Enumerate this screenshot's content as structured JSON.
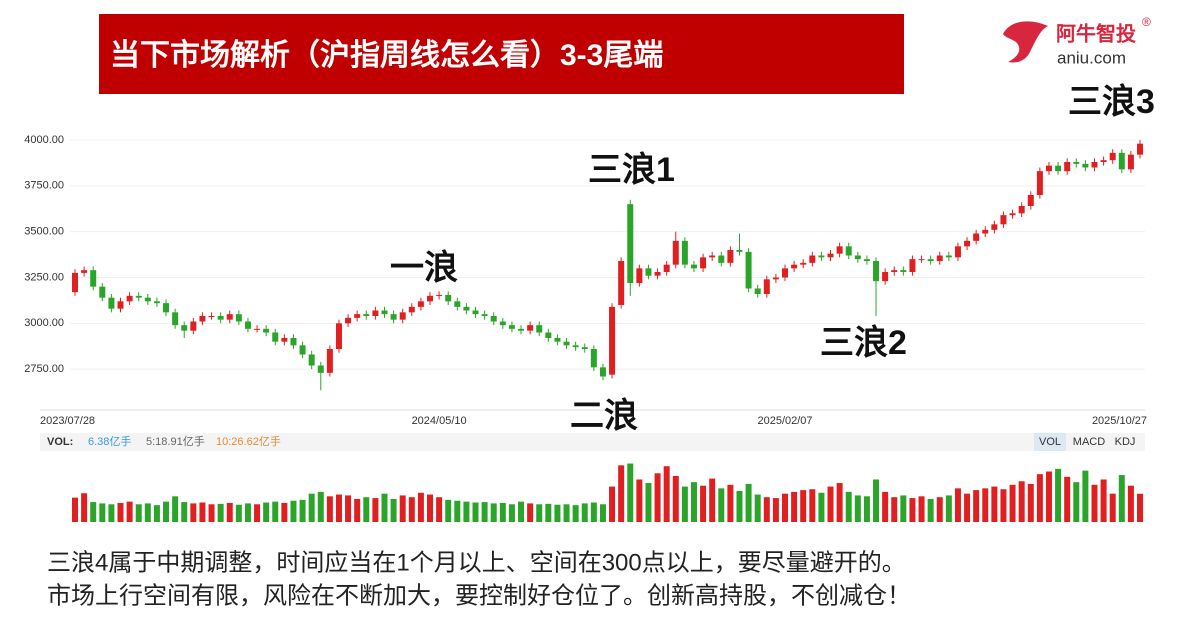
{
  "slide": {
    "title": "当下市场解析（沪指周线怎么看）3-3尾端",
    "logo_name": "阿牛智投",
    "logo_mark": "®",
    "logo_url": "aniu.com",
    "text": [
      "三浪4属于中期调整，时间应当在1个月以上、空间在300点以上，要尽量避开的。",
      "市场上行空间有限，风险在不断加大，要控制好仓位了。创新高持股，不创减仓！"
    ]
  },
  "chart_data": [
    {
      "type": "candlestick",
      "annotations": [
        "三浪3",
        "三浪1",
        "一浪",
        "三浪2",
        "二浪"
      ],
      "up_color": "#e02020",
      "down_color": "#2aa52a",
      "ylim": [
        2560,
        4060
      ],
      "yticks": [
        {
          "value": 2750,
          "label": "2750.00"
        },
        {
          "value": 3000,
          "label": "3000.00"
        },
        {
          "value": 3250,
          "label": "3250.00"
        },
        {
          "value": 3500,
          "label": "3500.00"
        },
        {
          "value": 3750,
          "label": "3750.00"
        },
        {
          "value": 4000,
          "label": "4000.00"
        }
      ],
      "grid": true,
      "categories": [
        "2023/07/28",
        null,
        null,
        null,
        null,
        null,
        null,
        null,
        null,
        null,
        null,
        null,
        null,
        null,
        null,
        null,
        null,
        null,
        null,
        null,
        null,
        null,
        null,
        null,
        null,
        null,
        null,
        null,
        null,
        null,
        null,
        null,
        null,
        null,
        null,
        null,
        null,
        null,
        null,
        null,
        "2024/05/10",
        null,
        null,
        null,
        null,
        null,
        null,
        null,
        null,
        null,
        null,
        null,
        null,
        null,
        null,
        null,
        null,
        null,
        null,
        null,
        null,
        null,
        null,
        null,
        null,
        null,
        null,
        null,
        null,
        null,
        null,
        null,
        null,
        null,
        null,
        null,
        null,
        null,
        "2025/02/07",
        null,
        null,
        null,
        null,
        null,
        null,
        null,
        null,
        null,
        null,
        null,
        null,
        null,
        null,
        null,
        null,
        null,
        null,
        null,
        null,
        null,
        null,
        null,
        null,
        null,
        null,
        null,
        null,
        null,
        null,
        null,
        null,
        null,
        null,
        null,
        null,
        null,
        null,
        "2025/10/27"
      ],
      "open": [
        3170,
        3275,
        3290,
        3200,
        3140,
        3080,
        3120,
        3150,
        3140,
        3120,
        3110,
        3060,
        2990,
        2960,
        3010,
        3040,
        3040,
        3020,
        3050,
        3010,
        2970,
        2970,
        2950,
        2900,
        2920,
        2880,
        2830,
        2770,
        2730,
        2860,
        3000,
        3030,
        3050,
        3040,
        3070,
        3050,
        3020,
        3060,
        3090,
        3120,
        3150,
        3155,
        3120,
        3090,
        3070,
        3050,
        3040,
        3010,
        2990,
        2970,
        2960,
        2990,
        2950,
        2920,
        2900,
        2880,
        2870,
        2860,
        2760,
        2720,
        3100,
        3650,
        3220,
        3300,
        3260,
        3280,
        3320,
        3450,
        3320,
        3300,
        3360,
        3370,
        3330,
        3400,
        3390,
        3190,
        3160,
        3240,
        3250,
        3300,
        3320,
        3330,
        3370,
        3360,
        3380,
        3420,
        3370,
        3350,
        3340,
        3230,
        3280,
        3290,
        3280,
        3350,
        3350,
        3340,
        3370,
        3360,
        3420,
        3450,
        3490,
        3510,
        3540,
        3590,
        3600,
        3640,
        3700,
        3830,
        3860,
        3830,
        3880,
        3870,
        3850,
        3880,
        3890,
        3930,
        3840,
        3920
      ],
      "high": [
        3295,
        3310,
        3310,
        3220,
        3160,
        3140,
        3170,
        3170,
        3160,
        3140,
        3130,
        3080,
        3010,
        3030,
        3060,
        3060,
        3060,
        3070,
        3070,
        3030,
        2990,
        2990,
        2970,
        2940,
        2940,
        2900,
        2850,
        2790,
        2880,
        3020,
        3050,
        3070,
        3070,
        3090,
        3090,
        3070,
        3080,
        3110,
        3140,
        3170,
        3175,
        3175,
        3140,
        3110,
        3090,
        3070,
        3060,
        3030,
        3010,
        2990,
        3010,
        3010,
        2970,
        2940,
        2920,
        2900,
        2890,
        2880,
        2780,
        3110,
        3360,
        3674,
        3320,
        3320,
        3300,
        3340,
        3500,
        3470,
        3340,
        3380,
        3390,
        3390,
        3420,
        3490,
        3410,
        3210,
        3260,
        3270,
        3320,
        3340,
        3350,
        3390,
        3390,
        3400,
        3440,
        3440,
        3390,
        3370,
        3360,
        3300,
        3310,
        3310,
        3370,
        3370,
        3370,
        3390,
        3390,
        3440,
        3470,
        3510,
        3530,
        3560,
        3610,
        3620,
        3660,
        3720,
        3850,
        3880,
        3880,
        3900,
        3900,
        3890,
        3900,
        3910,
        3950,
        3950,
        3940,
        4000
      ],
      "low": [
        3150,
        3255,
        3180,
        3120,
        3060,
        3060,
        3100,
        3120,
        3100,
        3090,
        3040,
        2970,
        2920,
        2940,
        2990,
        3020,
        3000,
        3000,
        2990,
        2950,
        2950,
        2930,
        2880,
        2880,
        2860,
        2810,
        2750,
        2635,
        2710,
        2840,
        2980,
        3010,
        3020,
        3020,
        3030,
        3000,
        3000,
        3040,
        3070,
        3100,
        3130,
        3100,
        3070,
        3050,
        3030,
        3020,
        2990,
        2970,
        2950,
        2940,
        2940,
        2930,
        2900,
        2880,
        2860,
        2850,
        2840,
        2740,
        2690,
        2700,
        3080,
        3150,
        3200,
        3240,
        3240,
        3260,
        3300,
        3300,
        3280,
        3280,
        3340,
        3310,
        3310,
        3370,
        3170,
        3140,
        3140,
        3220,
        3230,
        3280,
        3300,
        3310,
        3340,
        3340,
        3360,
        3350,
        3330,
        3320,
        3040,
        3210,
        3260,
        3260,
        3260,
        3330,
        3320,
        3320,
        3340,
        3340,
        3400,
        3430,
        3470,
        3490,
        3520,
        3570,
        3580,
        3620,
        3680,
        3810,
        3810,
        3810,
        3850,
        3830,
        3830,
        3860,
        3870,
        3820,
        3820,
        3900
      ],
      "close": [
        3275,
        3290,
        3200,
        3140,
        3080,
        3120,
        3150,
        3140,
        3120,
        3110,
        3060,
        2990,
        2960,
        3010,
        3040,
        3040,
        3020,
        3050,
        3010,
        2970,
        2970,
        2950,
        2900,
        2920,
        2880,
        2830,
        2770,
        2730,
        2860,
        3000,
        3030,
        3050,
        3040,
        3070,
        3050,
        3020,
        3060,
        3090,
        3120,
        3150,
        3155,
        3120,
        3090,
        3070,
        3050,
        3040,
        3010,
        2990,
        2970,
        2960,
        2990,
        2950,
        2920,
        2900,
        2880,
        2870,
        2860,
        2760,
        2710,
        3090,
        3340,
        3220,
        3300,
        3260,
        3280,
        3320,
        3450,
        3320,
        3300,
        3360,
        3370,
        3330,
        3400,
        3390,
        3190,
        3160,
        3240,
        3250,
        3300,
        3320,
        3330,
        3370,
        3360,
        3380,
        3420,
        3370,
        3350,
        3340,
        3230,
        3280,
        3290,
        3280,
        3350,
        3350,
        3340,
        3370,
        3360,
        3420,
        3450,
        3490,
        3510,
        3540,
        3590,
        3600,
        3640,
        3700,
        3830,
        3860,
        3830,
        3880,
        3870,
        3850,
        3880,
        3890,
        3930,
        3840,
        3920,
        3980
      ]
    },
    {
      "type": "bar",
      "legend": [
        "VOL:",
        "6.38亿手",
        "5:18.91亿手",
        "10:26.62亿手"
      ],
      "legend_colors": [
        "#333333",
        "#3a9ad9",
        "#666666",
        "#e8893a"
      ],
      "tabs": [
        "VOL",
        "MACD",
        "KDJ"
      ],
      "ylim": [
        0,
        14
      ],
      "values": [
        5.5,
        6.5,
        4.5,
        4.2,
        4.0,
        4.3,
        4.6,
        4.0,
        4.2,
        3.8,
        4.6,
        5.8,
        4.5,
        4.2,
        4.4,
        4.0,
        4.1,
        4.3,
        3.9,
        4.2,
        4.0,
        4.4,
        4.6,
        4.3,
        4.8,
        5.0,
        6.4,
        6.8,
        5.8,
        6.2,
        6.0,
        5.2,
        5.6,
        5.4,
        6.4,
        5.2,
        6.0,
        5.6,
        6.6,
        6.2,
        5.6,
        5.0,
        4.8,
        4.6,
        4.4,
        4.5,
        4.2,
        4.3,
        4.0,
        4.6,
        4.2,
        4.0,
        4.1,
        3.9,
        4.0,
        3.8,
        4.2,
        4.4,
        4.0,
        8.0,
        12.8,
        13.2,
        9.6,
        8.8,
        11.0,
        12.6,
        10.4,
        8.0,
        9.0,
        8.2,
        9.8,
        7.6,
        8.4,
        7.0,
        8.6,
        6.2,
        5.6,
        5.4,
        6.4,
        6.8,
        7.2,
        7.4,
        6.6,
        8.0,
        8.8,
        6.8,
        6.0,
        5.8,
        9.6,
        6.8,
        5.6,
        6.0,
        5.4,
        5.8,
        5.2,
        5.6,
        6.0,
        7.6,
        6.4,
        7.2,
        7.6,
        8.0,
        7.4,
        8.4,
        9.2,
        8.6,
        10.8,
        11.4,
        12.0,
        10.2,
        9.0,
        11.6,
        8.4,
        9.6,
        6.4,
        10.6,
        8.2,
        6.38
      ]
    }
  ]
}
